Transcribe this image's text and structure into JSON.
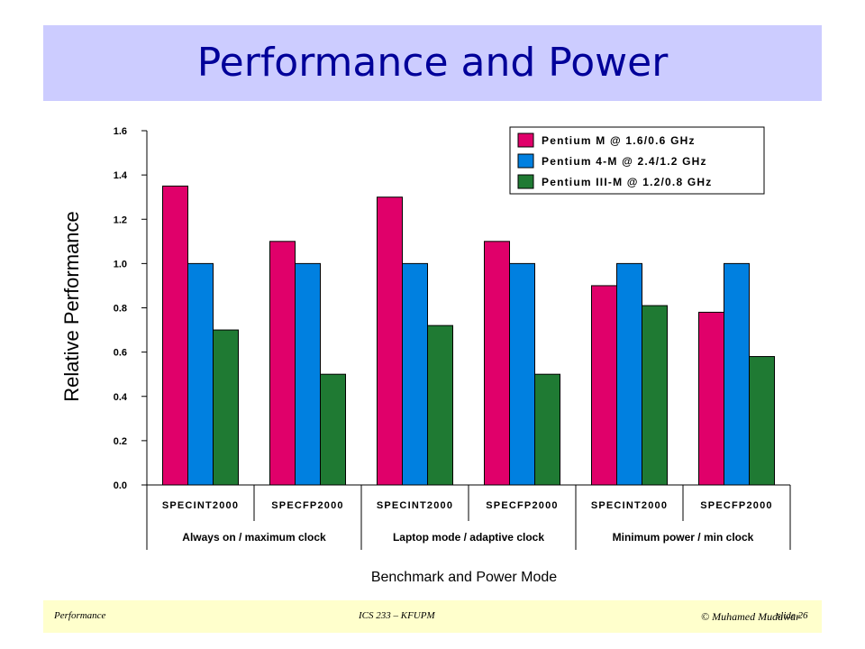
{
  "slide": {
    "title": "Performance and Power"
  },
  "footer": {
    "left": "Performance",
    "center": "ICS 233 – KFUPM",
    "right": "© Muhamed Mudawar",
    "slide_no": "slide 26"
  },
  "chart_data": {
    "type": "bar",
    "title": "",
    "xlabel": "Benchmark and Power Mode",
    "ylabel": "Relative Performance",
    "ylim": [
      0,
      1.6
    ],
    "yticks": [
      "0.0",
      "0.2",
      "0.4",
      "0.6",
      "0.8",
      "1.0",
      "1.2",
      "1.4",
      "1.6"
    ],
    "grid": false,
    "legend_position": "top-right",
    "categories": [
      "SPECINT2000",
      "SPECFP2000",
      "SPECINT2000",
      "SPECFP2000",
      "SPECINT2000",
      "SPECFP2000"
    ],
    "groups": [
      "Always on / maximum clock",
      "Laptop mode / adaptive clock",
      "Minimum power / min clock"
    ],
    "series": [
      {
        "name": "Pentium M @ 1.6/0.6 GHz",
        "color": "#e0006a",
        "values": [
          1.35,
          1.1,
          1.3,
          1.1,
          0.9,
          0.78
        ]
      },
      {
        "name": "Pentium 4-M @ 2.4/1.2 GHz",
        "color": "#0080e0",
        "values": [
          1.0,
          1.0,
          1.0,
          1.0,
          1.0,
          1.0
        ]
      },
      {
        "name": "Pentium III-M @ 1.2/0.8 GHz",
        "color": "#1f7a33",
        "values": [
          0.7,
          0.5,
          0.72,
          0.5,
          0.81,
          0.58
        ]
      }
    ]
  }
}
